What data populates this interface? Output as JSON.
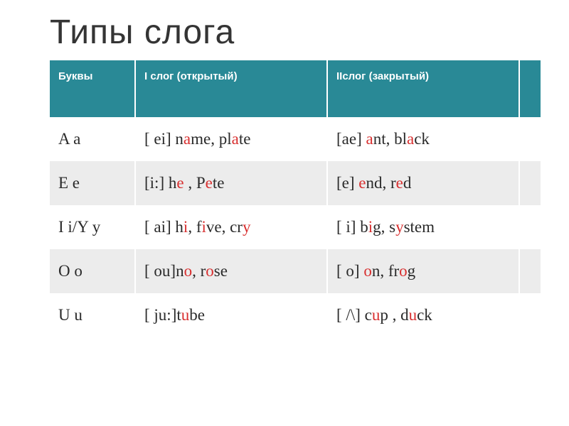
{
  "title": "Типы  слога",
  "headers": {
    "col1": "Буквы",
    "col2": "I слог (открытый)",
    "col3": "IIслог (закрытый)",
    "col4": ""
  },
  "colors": {
    "header_bg": "#298996",
    "header_text": "#ffffff",
    "row_odd_bg": "#ffffff",
    "row_even_bg": "#ececec",
    "highlight": "#d82f2f",
    "text": "#2a2a2a",
    "title_color": "#343434"
  },
  "fontsizes": {
    "title": 48,
    "header": 15,
    "cell": 23
  },
  "rows": [
    {
      "letter": "A a",
      "open": {
        "segments": [
          {
            "t": "[ ei] n"
          },
          {
            "t": "a",
            "hl": true
          },
          {
            "t": "me, pl"
          },
          {
            "t": "a",
            "hl": true
          },
          {
            "t": "te"
          }
        ]
      },
      "closed": {
        "segments": [
          {
            "t": "[ae]  "
          },
          {
            "t": "a",
            "hl": true
          },
          {
            "t": "nt, bl"
          },
          {
            "t": "a",
            "hl": true
          },
          {
            "t": "ck"
          }
        ]
      }
    },
    {
      "letter": "E e",
      "open": {
        "segments": [
          {
            "t": "[i:]  h"
          },
          {
            "t": "e",
            "hl": true
          },
          {
            "t": " , P"
          },
          {
            "t": "e",
            "hl": true
          },
          {
            "t": "te"
          }
        ]
      },
      "closed": {
        "segments": [
          {
            "t": "[e] "
          },
          {
            "t": "e",
            "hl": true
          },
          {
            "t": "nd, r"
          },
          {
            "t": "e",
            "hl": true
          },
          {
            "t": "d"
          }
        ]
      }
    },
    {
      "letter": "I i/Y y",
      "open": {
        "segments": [
          {
            "t": "[ ai]  h"
          },
          {
            "t": "i",
            "hl": true
          },
          {
            "t": ", f"
          },
          {
            "t": "i",
            "hl": true
          },
          {
            "t": "ve, cr"
          },
          {
            "t": "y",
            "hl": true
          }
        ]
      },
      "closed": {
        "segments": [
          {
            "t": "[ i]  b"
          },
          {
            "t": "i",
            "hl": true
          },
          {
            "t": "g, s"
          },
          {
            "t": "y",
            "hl": true
          },
          {
            "t": "stem"
          }
        ]
      }
    },
    {
      "letter": "O o",
      "open": {
        "segments": [
          {
            "t": "[ ou]n"
          },
          {
            "t": "o",
            "hl": true
          },
          {
            "t": ", r"
          },
          {
            "t": "o",
            "hl": true
          },
          {
            "t": "se"
          }
        ]
      },
      "closed": {
        "segments": [
          {
            "t": "[ o] "
          },
          {
            "t": "o",
            "hl": true
          },
          {
            "t": "n, fr"
          },
          {
            "t": "o",
            "hl": true
          },
          {
            "t": "g"
          }
        ]
      }
    },
    {
      "letter": "U u",
      "open": {
        "segments": [
          {
            "t": "[ ju:]t"
          },
          {
            "t": "u",
            "hl": true
          },
          {
            "t": "be"
          }
        ]
      },
      "closed": {
        "segments": [
          {
            "t": "[ /\\] c"
          },
          {
            "t": "u",
            "hl": true
          },
          {
            "t": "p , d"
          },
          {
            "t": "u",
            "hl": true
          },
          {
            "t": "ck"
          }
        ]
      }
    }
  ]
}
